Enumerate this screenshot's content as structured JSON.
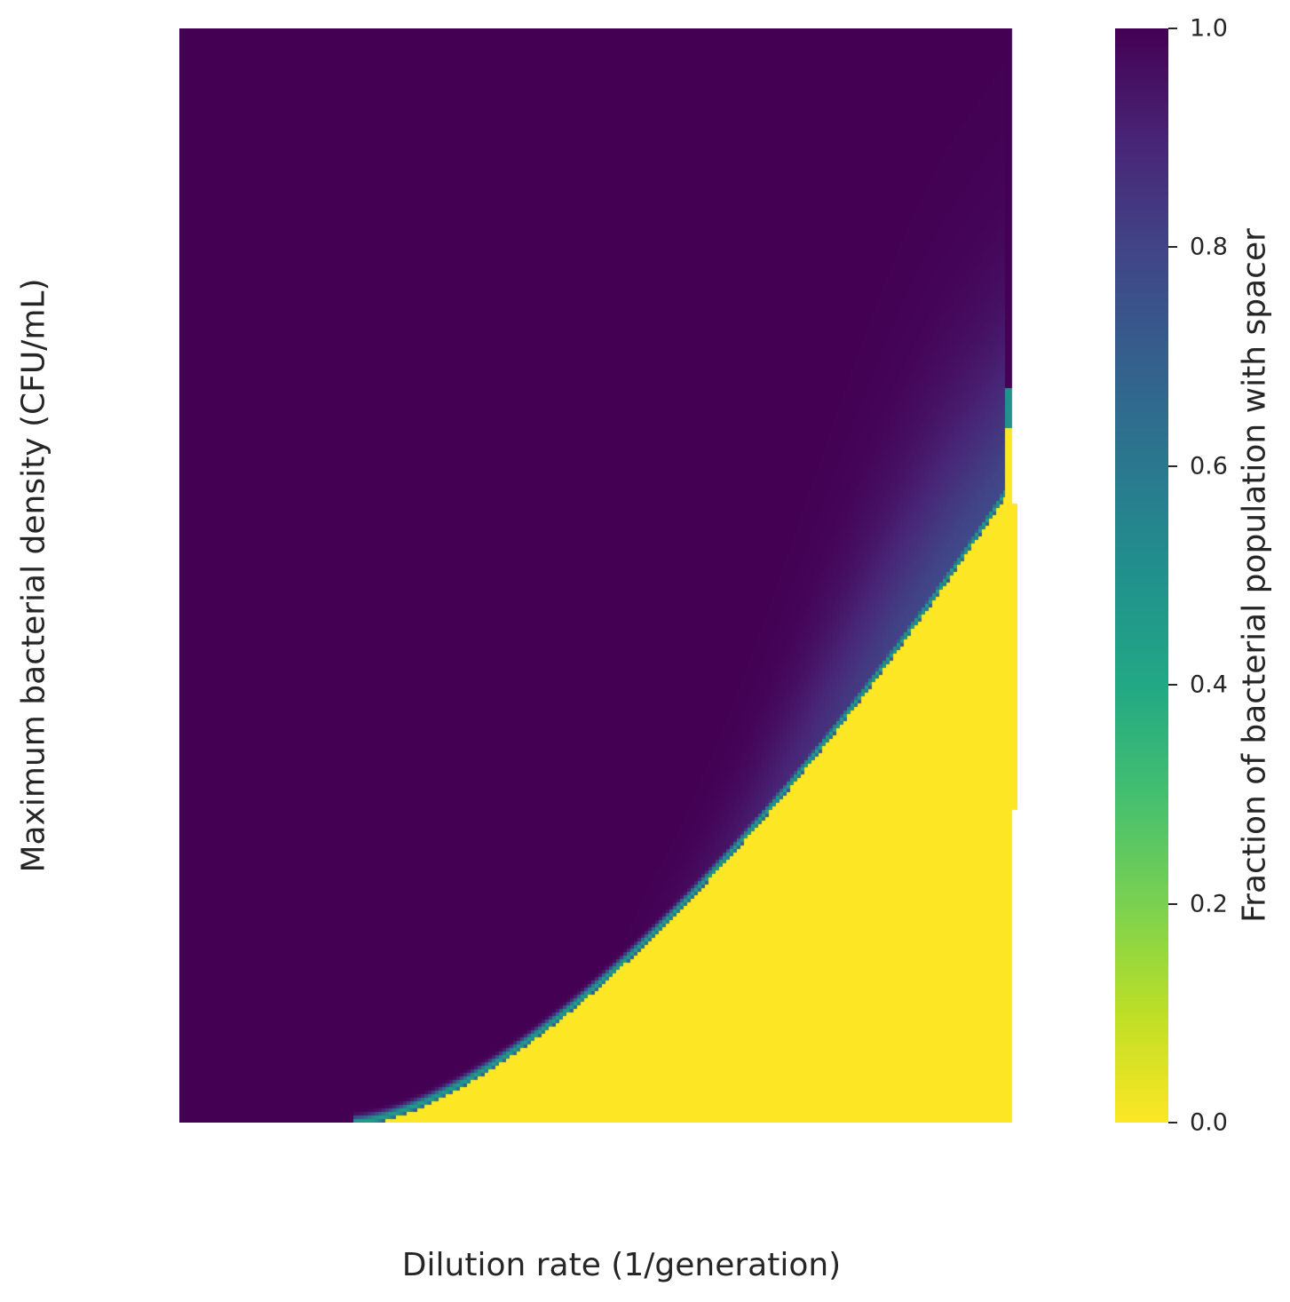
{
  "chart_data": {
    "type": "heatmap",
    "title": "",
    "xlabel": "Dilution rate (1/generation)",
    "ylabel": "Maximum bacterial density (CFU/mL)",
    "colormap": "viridis_r",
    "colorbar": {
      "label": "Fraction of bacterial population with spacer",
      "range": [
        0.0,
        1.0
      ],
      "ticks": [
        "0.0",
        "0.2",
        "0.4",
        "0.6",
        "0.8",
        "1.0"
      ]
    },
    "grid": false,
    "colors": {
      "high": "#440154",
      "mid": "#21918c",
      "low": "#fde725"
    }
  }
}
